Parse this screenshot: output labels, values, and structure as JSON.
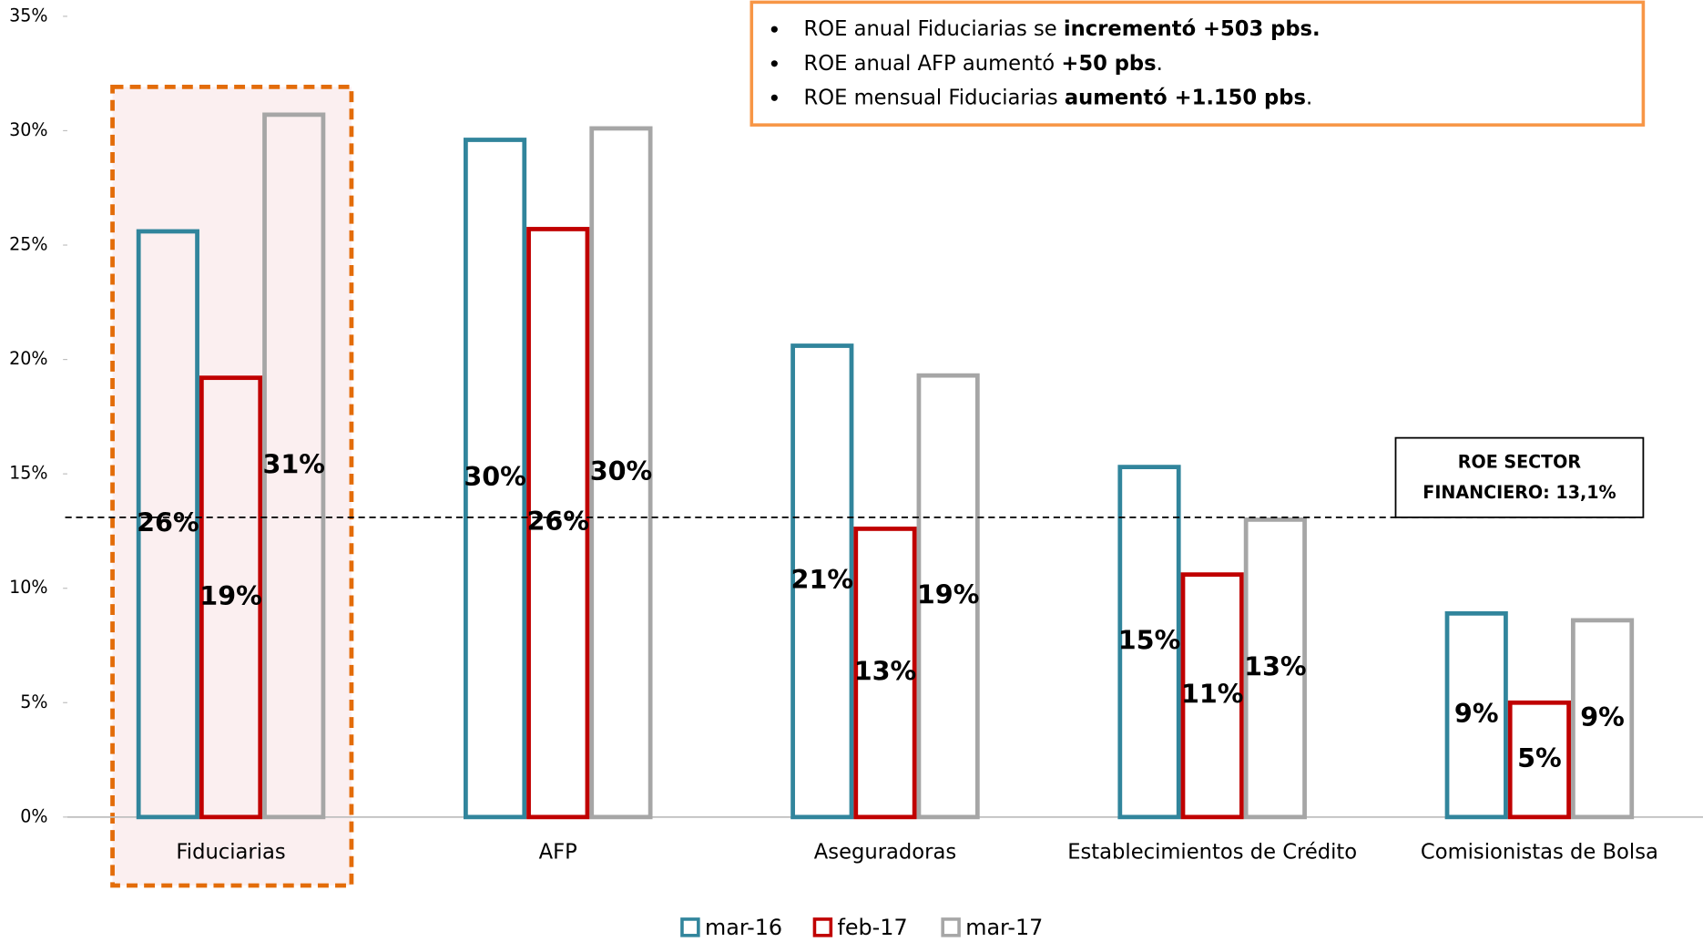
{
  "chart_data": {
    "type": "bar",
    "categories": [
      "Fiduciarias",
      "AFP",
      "Aseguradoras",
      "Establecimientos de Crédito",
      "Comisionistas de Bolsa"
    ],
    "series": [
      {
        "name": "mar-16",
        "color": "#31859c",
        "label_color": "#31859c",
        "values": [
          25.6,
          29.6,
          20.6,
          15.3,
          8.9
        ],
        "value_labels": [
          "26%",
          "30%",
          "21%",
          "15%",
          "9%"
        ]
      },
      {
        "name": "feb-17",
        "color": "#c00000",
        "label_color": "#c00000",
        "values": [
          19.2,
          25.7,
          12.6,
          10.6,
          5.0
        ],
        "value_labels": [
          "19%",
          "26%",
          "13%",
          "11%",
          "5%"
        ]
      },
      {
        "name": "mar-17",
        "color": "#a6a6a6",
        "label_color": "#999999",
        "values": [
          30.7,
          30.1,
          19.3,
          13.0,
          8.6
        ],
        "value_labels": [
          "31%",
          "30%",
          "19%",
          "13%",
          "9%"
        ]
      }
    ],
    "ylim": [
      0,
      35
    ],
    "yticks": [
      {
        "value": 0,
        "label": "0%"
      },
      {
        "value": 5,
        "label": "5%"
      },
      {
        "value": 10,
        "label": "10%"
      },
      {
        "value": 15,
        "label": "15%"
      },
      {
        "value": 20,
        "label": "20%"
      },
      {
        "value": 25,
        "label": "25%"
      },
      {
        "value": 30,
        "label": "30%"
      },
      {
        "value": 35,
        "label": "35%"
      }
    ],
    "grid": false,
    "legend": "bottom",
    "highlight_category": 0,
    "reference_line": {
      "value": 13.1,
      "label": [
        "ROE SECTOR",
        "FINANCIERO: 13,1%"
      ]
    },
    "annotation": [
      [
        {
          "text": "ROE anual Fiduciarias se "
        },
        {
          "text": "incrementó +503 pbs.",
          "bold": true
        }
      ],
      [
        {
          "text": "ROE anual AFP aumentó "
        },
        {
          "text": "+50 pbs",
          "bold": true
        },
        {
          "text": "."
        }
      ],
      [
        {
          "text": "ROE mensual Fiduciarias "
        },
        {
          "text": "aumentó +1.150 pbs",
          "bold": true
        },
        {
          "text": "."
        }
      ]
    ]
  }
}
